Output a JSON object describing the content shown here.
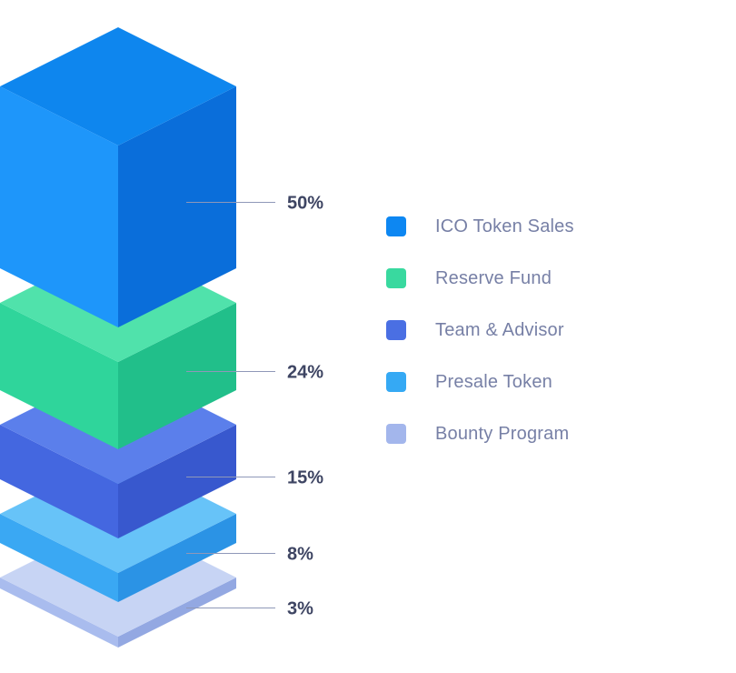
{
  "chart_data": {
    "type": "bar",
    "variant": "isometric-3d-stacked-boxes",
    "title": "",
    "categories": [
      "ICO Token Sales",
      "Reserve Fund",
      "Team & Advisor",
      "Presale Token",
      "Bounty Program"
    ],
    "values": [
      50,
      24,
      15,
      8,
      3
    ],
    "value_labels": [
      "50%",
      "24%",
      "15%",
      "8%",
      "3%"
    ],
    "unit": "%",
    "colors": [
      {
        "top": "#0E86EE",
        "left": "#1E96FA",
        "right": "#0A6EDA",
        "swatch": "#0D87F2"
      },
      {
        "top": "#50E2AB",
        "left": "#2FD59B",
        "right": "#21BF8A",
        "swatch": "#39D99F"
      },
      {
        "top": "#5B7FEB",
        "left": "#4467E0",
        "right": "#3858CE",
        "swatch": "#4A6FE3"
      },
      {
        "top": "#67C3F8",
        "left": "#3AA8F3",
        "right": "#2B93E5",
        "swatch": "#35A9F4"
      },
      {
        "top": "#C7D4F4",
        "left": "#A9BCEE",
        "right": "#93A8E2",
        "swatch": "#A3B6EC"
      }
    ],
    "leader_line_color": "#8F98B8",
    "value_label_color": "#3E4563",
    "legend_position": "right",
    "legend_text_color": "#7780A6",
    "grid": false,
    "background": "#FFFFFF"
  },
  "legend": {
    "items": [
      {
        "label": "ICO Token Sales"
      },
      {
        "label": "Reserve Fund"
      },
      {
        "label": "Team & Advisor"
      },
      {
        "label": "Presale Token"
      },
      {
        "label": "Bounty Program"
      }
    ]
  }
}
